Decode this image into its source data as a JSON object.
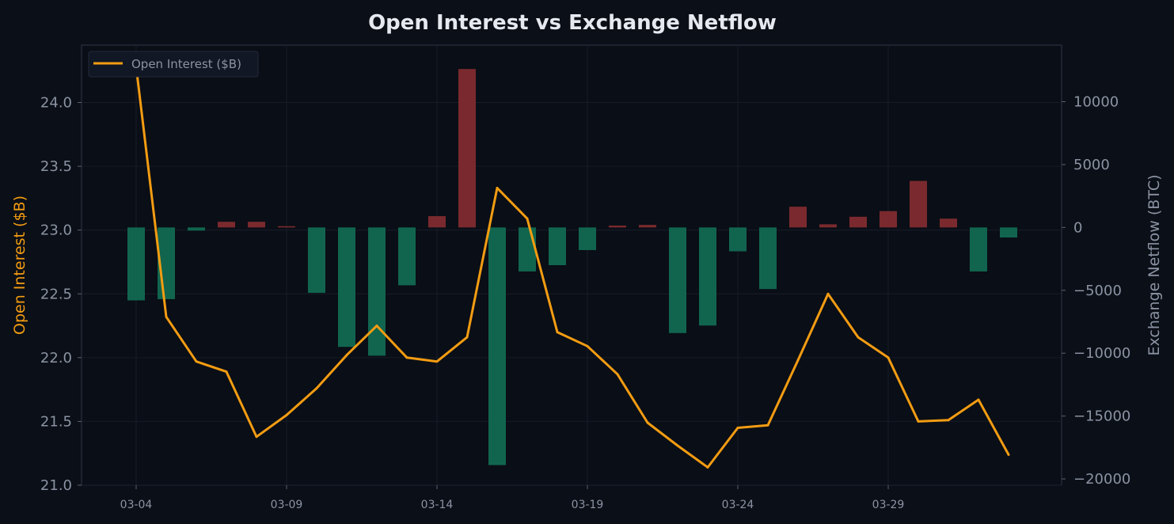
{
  "chart_data": {
    "type": "bar+line",
    "title": "Open Interest vs Exchange Netflow",
    "dates": [
      "03-04",
      "03-05",
      "03-06",
      "03-07",
      "03-08",
      "03-09",
      "03-10",
      "03-11",
      "03-12",
      "03-13",
      "03-14",
      "03-15",
      "03-16",
      "03-17",
      "03-18",
      "03-19",
      "03-20",
      "03-21",
      "03-22",
      "03-23",
      "03-24",
      "03-25",
      "03-26",
      "03-27",
      "03-28",
      "03-29",
      "03-30",
      "03-31",
      "04-01",
      "04-02"
    ],
    "x_tick_labels": [
      "03-04",
      "03-09",
      "03-14",
      "03-19",
      "03-24",
      "03-29"
    ],
    "left_axis": {
      "label": "Open Interest ($B)",
      "ylim": [
        21.0,
        24.45
      ],
      "ticks": [
        "21.0",
        "21.5",
        "22.0",
        "22.5",
        "23.0",
        "23.5",
        "24.0"
      ],
      "tick_values": [
        21.0,
        21.5,
        22.0,
        22.5,
        23.0,
        23.5,
        24.0
      ]
    },
    "right_axis": {
      "label": "Exchange Netflow (BTC)",
      "ylim": [
        -20500,
        14500
      ],
      "ticks": [
        "−20000",
        "−15000",
        "−10000",
        "−5000",
        "0",
        "5000",
        "10000"
      ],
      "tick_values": [
        -20000,
        -15000,
        -10000,
        -5000,
        0,
        5000,
        10000
      ]
    },
    "series": [
      {
        "name": "Open Interest ($B)",
        "type": "line",
        "axis": "left",
        "color": "#f39c12",
        "values": [
          24.28,
          22.32,
          21.97,
          21.89,
          21.38,
          21.55,
          21.76,
          22.02,
          22.25,
          22.0,
          21.97,
          22.16,
          23.33,
          23.09,
          22.2,
          22.09,
          21.87,
          21.49,
          21.31,
          21.14,
          21.45,
          21.47,
          21.98,
          22.5,
          22.16,
          22.0,
          21.5,
          21.51,
          21.67,
          21.24
        ]
      },
      {
        "name": "Exchange Netflow (BTC)",
        "type": "bar",
        "axis": "right",
        "values": [
          -5800,
          -5700,
          -250,
          450,
          450,
          100,
          -5200,
          -9500,
          -10200,
          -4600,
          900,
          12600,
          -18900,
          -3500,
          -3000,
          -1800,
          150,
          200,
          -8400,
          -7800,
          -1900,
          -4900,
          1650,
          250,
          850,
          1300,
          3700,
          700,
          -3500,
          -800
        ]
      }
    ],
    "colors": {
      "inflow_bar": "#7a2a2e",
      "outflow_bar": "#11654e",
      "line": "#f39c12",
      "background": "#0b0f17",
      "grid": "#161c28",
      "axis": "#2a3140"
    },
    "legend": {
      "placement": "top-left",
      "entries": [
        "Open Interest ($B)"
      ]
    },
    "grid": true
  }
}
